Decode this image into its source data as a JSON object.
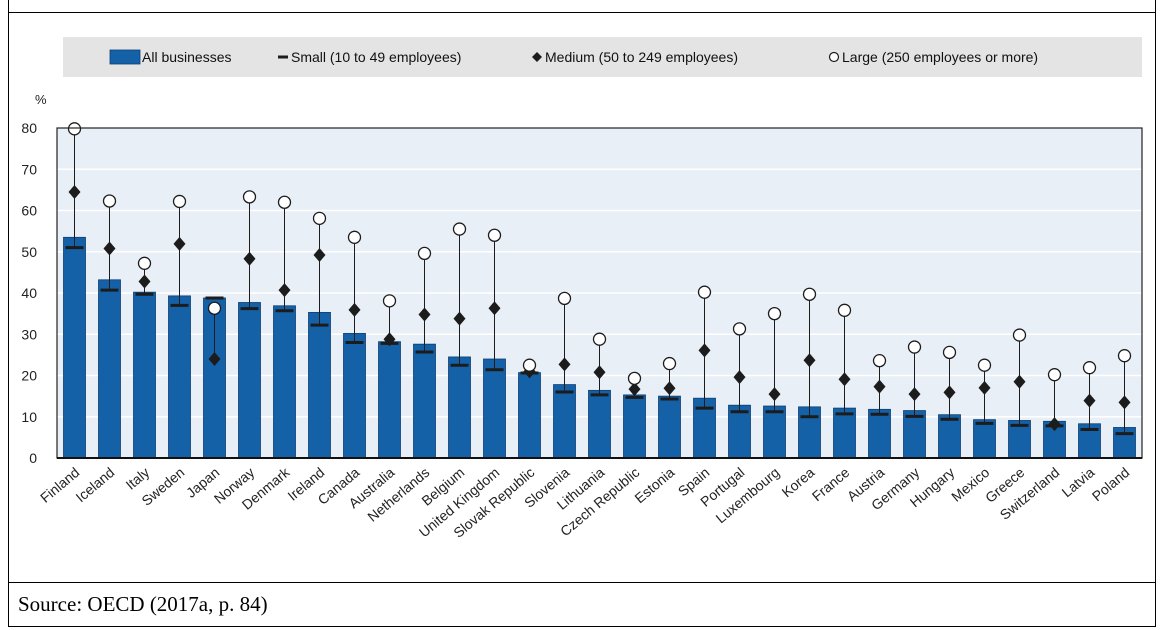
{
  "chart_data": {
    "type": "bar",
    "ylabel": "%",
    "ylim": [
      0,
      80
    ],
    "yticks": [
      0,
      10,
      20,
      30,
      40,
      50,
      60,
      70,
      80
    ],
    "grid": true,
    "legend_position": "top",
    "categories": [
      "Finland",
      "Iceland",
      "Italy",
      "Sweden",
      "Japan",
      "Norway",
      "Denmark",
      "Ireland",
      "Canada",
      "Australia",
      "Netherlands",
      "Belgium",
      "United Kingdom",
      "Slovak Republic",
      "Slovenia",
      "Lithuania",
      "Czech Republic",
      "Estonia",
      "Spain",
      "Portugal",
      "Luxembourg",
      "Korea",
      "France",
      "Austria",
      "Germany",
      "Hungary",
      "Mexico",
      "Greece",
      "Switzerland",
      "Latvia",
      "Poland"
    ],
    "series": [
      {
        "name": "All businesses",
        "marker": "bar",
        "values": [
          53.5,
          43.2,
          40.2,
          39.3,
          38.8,
          37.7,
          36.9,
          35.3,
          30.2,
          28.2,
          27.6,
          24.5,
          24.0,
          20.7,
          17.8,
          16.4,
          15.3,
          15.0,
          14.5,
          12.8,
          12.6,
          12.4,
          12.1,
          11.8,
          11.5,
          10.5,
          9.3,
          9.1,
          8.9,
          8.3,
          7.4
        ]
      },
      {
        "name": "Small (10 to 49 employees)",
        "marker": "dash",
        "values": [
          51.0,
          40.7,
          39.7,
          37.0,
          38.8,
          36.2,
          35.7,
          32.2,
          28.0,
          27.8,
          25.7,
          22.5,
          21.4,
          20.6,
          16.0,
          15.3,
          14.7,
          14.3,
          12.1,
          11.2,
          11.2,
          10.0,
          10.7,
          10.6,
          10.1,
          9.4,
          8.4,
          7.9,
          7.8,
          6.9,
          5.9
        ]
      },
      {
        "name": "Medium (50 to 249 employees)",
        "marker": "diamond",
        "values": [
          64.5,
          50.8,
          42.8,
          51.9,
          24.0,
          48.3,
          40.7,
          49.2,
          35.9,
          28.8,
          34.8,
          33.8,
          36.3,
          21.0,
          22.7,
          20.8,
          16.7,
          16.9,
          26.1,
          19.6,
          15.5,
          23.7,
          19.1,
          17.3,
          15.5,
          15.9,
          17.0,
          18.5,
          8.2,
          13.9,
          13.5
        ]
      },
      {
        "name": "Large (250 employees or more)",
        "marker": "circle",
        "values": [
          79.8,
          62.3,
          47.2,
          62.2,
          36.3,
          63.3,
          62.0,
          58.1,
          53.5,
          38.1,
          49.6,
          55.5,
          54.0,
          22.5,
          38.7,
          28.8,
          19.3,
          22.9,
          40.2,
          31.3,
          35.0,
          39.7,
          35.8,
          23.6,
          26.9,
          25.6,
          22.5,
          29.8,
          20.2,
          21.9,
          24.8
        ]
      }
    ],
    "colors": {
      "bar_fill": "#1561a8",
      "bar_stroke": "#0d3f73",
      "plot_background": "#e9eff7",
      "legend_background": "#e4e4e4",
      "grid": "#ffffff",
      "marker": "#1c1c1c"
    }
  },
  "legend": {
    "items": [
      {
        "label": "All businesses",
        "marker": "bar"
      },
      {
        "label": "Small (10 to 49 employees)",
        "marker": "dash"
      },
      {
        "label": "Medium (50 to 249 employees)",
        "marker": "diamond"
      },
      {
        "label": "Large (250 employees or more)",
        "marker": "circle"
      }
    ]
  },
  "caption": {
    "source": "Source: OECD (2017a, p. 84)"
  }
}
